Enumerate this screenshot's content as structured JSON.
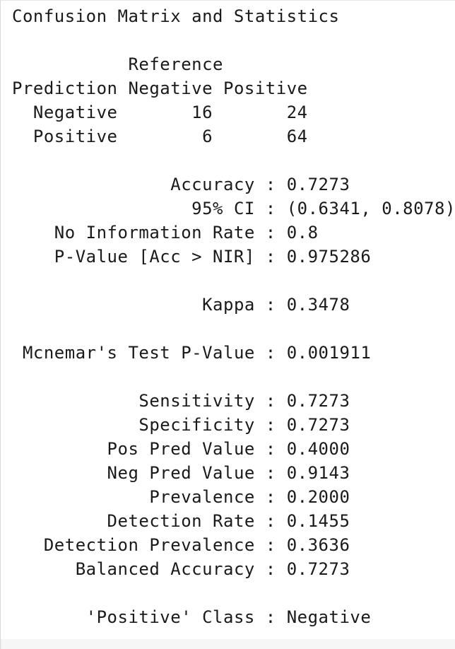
{
  "title": "Confusion Matrix and Statistics",
  "matrix": {
    "reference_label": "Reference",
    "header_prediction": "Prediction",
    "col_labels": [
      "Negative",
      "Positive"
    ],
    "rows": [
      {
        "label": "Negative",
        "values": [
          "16",
          "24"
        ]
      },
      {
        "label": "Positive",
        "values": [
          "6",
          "64"
        ]
      }
    ]
  },
  "stats_group1": [
    {
      "label": "Accuracy",
      "value": "0.7273"
    },
    {
      "label": "95% CI",
      "value": "(0.6341, 0.8078)"
    },
    {
      "label": "No Information Rate",
      "value": "0.8"
    },
    {
      "label": "P-Value [Acc > NIR]",
      "value": "0.975286"
    }
  ],
  "kappa": {
    "label": "Kappa",
    "value": "0.3478"
  },
  "mcnemar": {
    "label": "Mcnemar's Test P-Value",
    "value": "0.001911"
  },
  "stats_group2": [
    {
      "label": "Sensitivity",
      "value": "0.7273"
    },
    {
      "label": "Specificity",
      "value": "0.7273"
    },
    {
      "label": "Pos Pred Value",
      "value": "0.4000"
    },
    {
      "label": "Neg Pred Value",
      "value": "0.9143"
    },
    {
      "label": "Prevalence",
      "value": "0.2000"
    },
    {
      "label": "Detection Rate",
      "value": "0.1455"
    },
    {
      "label": "Detection Prevalence",
      "value": "0.3636"
    },
    {
      "label": "Balanced Accuracy",
      "value": "0.7273"
    }
  ],
  "positive_class": {
    "label": "'Positive' Class",
    "value": "Negative"
  },
  "colors": {
    "text": "#1a1a1a",
    "background": "#ffffff"
  }
}
